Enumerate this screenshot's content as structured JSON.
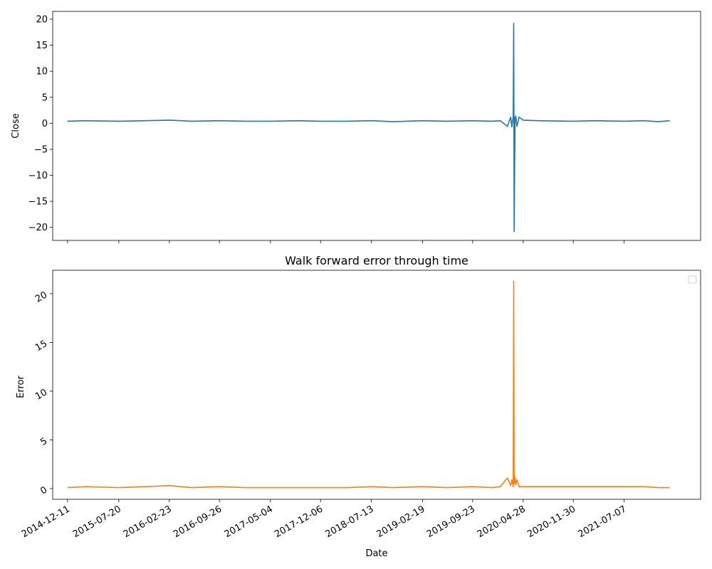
{
  "chart_data": [
    {
      "type": "line",
      "title": "",
      "xlabel": "",
      "ylabel": "Close",
      "xlim": [
        "2014-10-08",
        "2022-06-02"
      ],
      "ylim": [
        -22.5,
        21.5
      ],
      "y_ticks": [
        20,
        15,
        10,
        5,
        0,
        -5,
        -10,
        -15,
        -20
      ],
      "y_tick_labels": [
        "20",
        "15",
        "10",
        "5",
        "0",
        "−5",
        "−10",
        "−15",
        "−20"
      ],
      "series": [
        {
          "color": "#1f77b4",
          "x": [
            "2014-12-11",
            "2015-03-01",
            "2015-07-20",
            "2015-11-10",
            "2016-02-23",
            "2016-06-01",
            "2016-09-26",
            "2017-01-15",
            "2017-05-04",
            "2017-09-01",
            "2017-12-06",
            "2018-04-01",
            "2018-07-13",
            "2018-10-15",
            "2019-02-19",
            "2019-06-01",
            "2019-09-23",
            "2019-12-15",
            "2020-01-20",
            "2020-02-20",
            "2020-03-05",
            "2020-03-10",
            "2020-03-16",
            "2020-03-18",
            "2020-03-20",
            "2020-03-24",
            "2020-03-27",
            "2020-04-01",
            "2020-04-10",
            "2020-04-28",
            "2020-07-01",
            "2020-11-30",
            "2021-03-01",
            "2021-07-07",
            "2021-10-01",
            "2021-12-01",
            "2022-01-20"
          ],
          "values": [
            0.4,
            0.5,
            0.4,
            0.5,
            0.6,
            0.4,
            0.5,
            0.4,
            0.4,
            0.5,
            0.4,
            0.4,
            0.5,
            0.3,
            0.5,
            0.4,
            0.5,
            0.4,
            0.5,
            -0.6,
            1.2,
            -0.7,
            1.3,
            19.2,
            -20.8,
            1.1,
            1.4,
            -0.6,
            1.2,
            0.6,
            0.5,
            0.4,
            0.5,
            0.4,
            0.5,
            0.3,
            0.5
          ]
        }
      ]
    },
    {
      "type": "line",
      "title": "Walk forward error through time",
      "xlabel": "Date",
      "ylabel": "Error",
      "xlim": [
        "2014-10-08",
        "2022-06-02"
      ],
      "ylim": [
        -1.1,
        22.4
      ],
      "y_ticks": [
        0,
        5,
        10,
        15,
        20
      ],
      "y_tick_labels": [
        "0",
        "5",
        "10",
        "15",
        "20"
      ],
      "x_ticks": [
        "2014-12-11",
        "2015-07-20",
        "2016-02-23",
        "2016-09-26",
        "2017-05-04",
        "2017-12-06",
        "2018-07-13",
        "2019-02-19",
        "2019-09-23",
        "2020-04-28",
        "2020-11-30",
        "2021-07-07"
      ],
      "legend": "top-right",
      "series": [
        {
          "color": "#ff7f0e",
          "x": [
            "2014-12-11",
            "2015-03-01",
            "2015-07-20",
            "2015-11-10",
            "2016-02-23",
            "2016-06-01",
            "2016-09-26",
            "2017-01-15",
            "2017-05-04",
            "2017-09-01",
            "2017-12-06",
            "2018-04-01",
            "2018-07-13",
            "2018-10-15",
            "2019-02-19",
            "2019-06-01",
            "2019-09-23",
            "2019-12-15",
            "2020-01-20",
            "2020-02-20",
            "2020-03-05",
            "2020-03-10",
            "2020-03-16",
            "2020-03-18",
            "2020-03-20",
            "2020-03-24",
            "2020-03-27",
            "2020-04-01",
            "2020-04-10",
            "2020-04-28",
            "2020-07-01",
            "2020-11-30",
            "2021-03-01",
            "2021-07-07",
            "2021-10-01",
            "2021-12-01",
            "2022-01-20"
          ],
          "values": [
            0.1,
            0.2,
            0.1,
            0.2,
            0.3,
            0.1,
            0.2,
            0.1,
            0.1,
            0.1,
            0.1,
            0.1,
            0.2,
            0.1,
            0.2,
            0.1,
            0.2,
            0.1,
            0.2,
            1.1,
            0.3,
            0.9,
            0.2,
            21.3,
            0.5,
            1.2,
            0.4,
            0.9,
            0.2,
            0.2,
            0.2,
            0.2,
            0.2,
            0.2,
            0.2,
            0.1,
            0.1
          ]
        }
      ]
    }
  ]
}
